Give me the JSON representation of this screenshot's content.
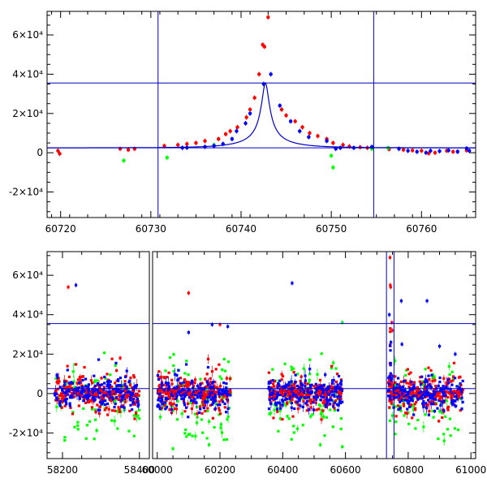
{
  "chart_data": [
    {
      "type": "scatter",
      "panel": "top",
      "xlim": [
        60718.5,
        60766
      ],
      "ylim": [
        -33000,
        72000
      ],
      "grid": false,
      "x_ticks": [
        60720,
        60730,
        60740,
        60750,
        60760
      ],
      "x_tick_labels": [
        "60720",
        "60730",
        "60740",
        "60750",
        "60760"
      ],
      "y_ticks": [
        -20000,
        0,
        20000,
        40000,
        60000
      ],
      "y_tick_labels": [
        "-2×10⁴",
        "0",
        "2×10⁴",
        "4×10⁴",
        "6×10⁴"
      ],
      "vlines": [
        60730.8,
        60754.7
      ],
      "hlines": [
        35500,
        2500
      ],
      "colors": {
        "red": "#ff0000",
        "green": "#00ff00",
        "blue": "#0000ff",
        "model": "#0000cc"
      },
      "model_curve": {
        "peak_x": 60742.7,
        "peak_y": 35500,
        "baseline": 2500,
        "u0": 0.07,
        "tE": 6
      },
      "series": [
        {
          "color_key": "red",
          "points": [
            [
              60719.7,
              1000
            ],
            [
              60719.9,
              -500
            ],
            [
              60726.6,
              2000
            ],
            [
              60727.5,
              1500
            ],
            [
              60728.2,
              2000
            ],
            [
              60731.5,
              3500
            ],
            [
              60733,
              4000
            ],
            [
              60734,
              4500
            ],
            [
              60735,
              5000
            ],
            [
              60736,
              6000
            ],
            [
              60737.5,
              7000
            ],
            [
              60738.3,
              9500
            ],
            [
              60738.8,
              11000
            ],
            [
              60739.6,
              13000
            ],
            [
              60740.6,
              18000
            ],
            [
              60741,
              22000
            ],
            [
              60741.5,
              28000
            ],
            [
              60742,
              40000
            ],
            [
              60742.4,
              55000
            ],
            [
              60742.6,
              54000
            ],
            [
              60743,
              69000
            ],
            [
              60744.5,
              22000
            ],
            [
              60745,
              19000
            ],
            [
              60746,
              16000
            ],
            [
              60746.8,
              13000
            ],
            [
              60747.6,
              10000
            ],
            [
              60748.5,
              8500
            ],
            [
              60749.5,
              7000
            ],
            [
              60750.2,
              5000
            ],
            [
              60751.3,
              4000
            ],
            [
              60752,
              3200
            ],
            [
              60753.2,
              2800
            ],
            [
              60754,
              2500
            ],
            [
              60756.4,
              1800
            ],
            [
              60758,
              1500
            ],
            [
              60759,
              1200
            ],
            [
              60760,
              1000
            ],
            [
              60760.8,
              -300
            ],
            [
              60761.5,
              0
            ],
            [
              60762.8,
              1000
            ],
            [
              60763.5,
              500
            ],
            [
              60764,
              600
            ],
            [
              60765,
              1200
            ]
          ]
        },
        {
          "color_key": "green",
          "points": [
            [
              60727,
              -4000
            ],
            [
              60731.8,
              -2500
            ],
            [
              60737,
              4000
            ],
            [
              60750,
              -1500
            ],
            [
              60750.2,
              -7500
            ],
            [
              60754.5,
              2000
            ],
            [
              60756.3,
              2500
            ]
          ]
        },
        {
          "color_key": "blue",
          "points": [
            [
              60733.5,
              2500
            ],
            [
              60734,
              2600
            ],
            [
              60736,
              3000
            ],
            [
              60737,
              3500
            ],
            [
              60738,
              4500
            ],
            [
              60739,
              7000
            ],
            [
              60739.5,
              11000
            ],
            [
              60740.5,
              15000
            ],
            [
              60741,
              20000
            ],
            [
              60742.5,
              35000
            ],
            [
              60743.3,
              40000
            ],
            [
              60744.3,
              24000
            ],
            [
              60745.5,
              16000
            ],
            [
              60746.5,
              11000
            ],
            [
              60747.5,
              8000
            ],
            [
              60749.5,
              6000
            ],
            [
              60750.5,
              2000
            ],
            [
              60751,
              2500
            ],
            [
              60752.5,
              2500
            ],
            [
              60754.5,
              3000
            ],
            [
              60757.5,
              2000
            ],
            [
              60758.5,
              1000
            ],
            [
              60759.5,
              500
            ],
            [
              60760.5,
              0
            ],
            [
              60761,
              1000
            ],
            [
              60762,
              800
            ],
            [
              60763,
              1200
            ],
            [
              60764,
              500
            ],
            [
              60765,
              2200
            ],
            [
              60765.3,
              1000
            ]
          ]
        }
      ]
    },
    {
      "type": "scatter",
      "panel": "bottom",
      "broken_x_axis": true,
      "segments": [
        {
          "xlim": [
            58160,
            58430
          ],
          "x_ticks": [
            58200,
            58400
          ],
          "x_tick_labels": [
            "58200",
            "58400"
          ]
        },
        {
          "xlim": [
            59980,
            61015
          ],
          "x_ticks": [
            60000,
            60200,
            60400,
            60600,
            60800,
            61000
          ],
          "x_tick_labels": [
            "60000",
            "60200",
            "60400",
            "60600",
            "60800",
            "61000"
          ]
        }
      ],
      "ylim": [
        -33000,
        72000
      ],
      "grid": false,
      "y_ticks": [
        -20000,
        0,
        20000,
        40000,
        60000
      ],
      "y_tick_labels": [
        "-2×10⁴",
        "0",
        "2×10⁴",
        "4×10⁴",
        "6×10⁴"
      ],
      "vlines": [
        60730.8,
        60754.7
      ],
      "hlines": [
        35500,
        2500
      ],
      "clusters": [
        {
          "x": [
            58180,
            58400
          ],
          "seg": 0
        },
        {
          "x": [
            60000,
            60235
          ],
          "seg": 1
        },
        {
          "x": [
            60355,
            60590
          ],
          "seg": 1
        },
        {
          "x": [
            60740,
            60975
          ],
          "seg": 1
        }
      ],
      "highlights": [
        {
          "color_key": "red",
          "seg": 0,
          "points": [
            [
              58215,
              54000
            ],
            [
              58350,
              18000
            ],
            [
              58230,
              -33000
            ]
          ]
        },
        {
          "color_key": "blue",
          "seg": 0,
          "points": [
            [
              58235,
              55000
            ]
          ]
        },
        {
          "color_key": "red",
          "seg": 1,
          "points": [
            [
              60100,
              51000
            ],
            [
              60200,
              35000
            ],
            [
              60742,
              69000
            ],
            [
              60743,
              55000
            ],
            [
              60744,
              54000
            ],
            [
              60748,
              36000
            ],
            [
              60749,
              32000
            ]
          ]
        },
        {
          "color_key": "blue",
          "seg": 1,
          "points": [
            [
              60430,
              56000
            ],
            [
              60100,
              31000
            ],
            [
              60175,
              35000
            ],
            [
              60225,
              34000
            ],
            [
              60900,
              24000
            ],
            [
              60950,
              20000
            ],
            [
              60860,
              47000
            ],
            [
              60740,
              40000
            ],
            [
              60778,
              47000
            ],
            [
              60745,
              26000
            ],
            [
              60780,
              25000
            ]
          ]
        },
        {
          "color_key": "green",
          "seg": 1,
          "points": [
            [
              60590,
              36000
            ],
            [
              60050,
              -28000
            ],
            [
              60165,
              -26000
            ],
            [
              60520,
              -26000
            ],
            [
              60590,
              -27000
            ]
          ]
        }
      ]
    }
  ]
}
